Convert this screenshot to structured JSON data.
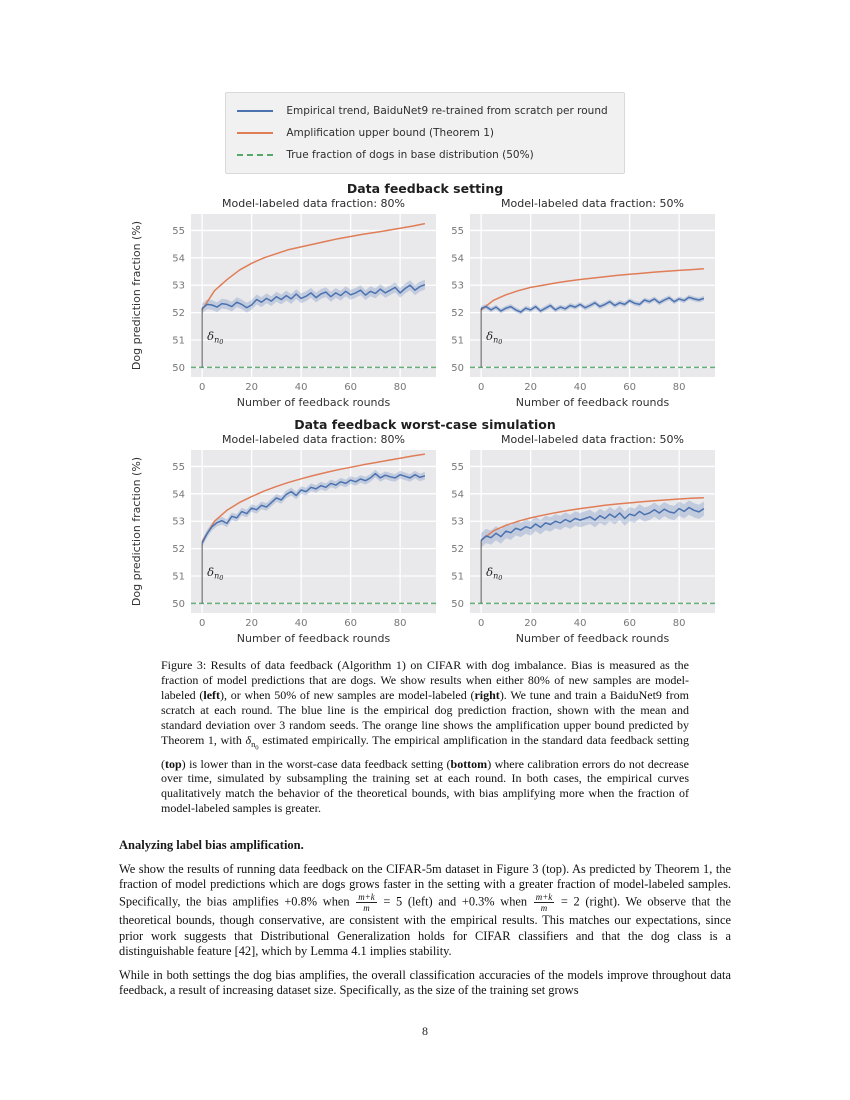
{
  "page_number": "8",
  "figure": {
    "legend": {
      "items": [
        {
          "label": "Empirical trend, BaiduNet9 re-trained from scratch per round",
          "color": "#4c72b0",
          "dash": false
        },
        {
          "label": "Amplification upper bound (Theorem 1)",
          "color": "#e07d57",
          "dash": false
        },
        {
          "label": "True fraction of dogs in base distribution (50%)",
          "color": "#55a868",
          "dash": true
        }
      ]
    },
    "groups": [
      {
        "title": "Data feedback setting"
      },
      {
        "title": "Data feedback worst-case simulation"
      }
    ]
  },
  "chart_data": [
    {
      "type": "line",
      "group": "Data feedback setting",
      "title": "Model-labeled data fraction: 80%",
      "xlabel": "Number of feedback rounds",
      "ylabel": "Dog prediction fraction (%)",
      "xlim": [
        -4.5,
        94.5
      ],
      "ylim": [
        49.65,
        55.6
      ],
      "xticks": [
        0,
        20,
        40,
        60,
        80
      ],
      "yticks": [
        50,
        51,
        52,
        53,
        54,
        55
      ],
      "baseline": {
        "y": 50,
        "color": "#55a868"
      },
      "annotation": {
        "t": "δ",
        "sub": "n",
        "subsub": "0",
        "x": 0,
        "from_y": 50
      },
      "series": [
        {
          "name": "Amplification upper bound (Theorem 1)",
          "color": "#e07d57",
          "x": [
            0,
            5,
            10,
            15,
            20,
            25,
            30,
            35,
            40,
            45,
            50,
            55,
            60,
            65,
            70,
            75,
            80,
            85,
            90
          ],
          "y": [
            52.1,
            52.8,
            53.2,
            53.55,
            53.8,
            54.0,
            54.15,
            54.3,
            54.4,
            54.5,
            54.6,
            54.7,
            54.78,
            54.86,
            54.93,
            55.0,
            55.08,
            55.16,
            55.25
          ]
        },
        {
          "name": "Empirical trend, BaiduNet9 re-trained from scratch per round",
          "color": "#4c72b0",
          "band": 0.18,
          "x": [
            0,
            2,
            4,
            6,
            8,
            10,
            12,
            14,
            16,
            18,
            20,
            22,
            24,
            26,
            28,
            30,
            32,
            34,
            36,
            38,
            40,
            42,
            44,
            46,
            48,
            50,
            52,
            54,
            56,
            58,
            60,
            62,
            64,
            66,
            68,
            70,
            72,
            74,
            76,
            78,
            80,
            82,
            84,
            86,
            88,
            90
          ],
          "y": [
            52.15,
            52.3,
            52.28,
            52.2,
            52.33,
            52.3,
            52.22,
            52.38,
            52.3,
            52.18,
            52.28,
            52.48,
            52.38,
            52.52,
            52.42,
            52.58,
            52.48,
            52.62,
            52.5,
            52.68,
            52.52,
            52.6,
            52.72,
            52.55,
            52.68,
            52.75,
            52.58,
            52.72,
            52.62,
            52.78,
            52.65,
            52.72,
            52.82,
            52.64,
            52.78,
            52.7,
            52.86,
            52.72,
            52.82,
            52.92,
            52.72,
            52.88,
            53.0,
            52.82,
            52.95,
            53.02
          ]
        }
      ]
    },
    {
      "type": "line",
      "group": "Data feedback setting",
      "title": "Model-labeled data fraction: 50%",
      "xlabel": "Number of feedback rounds",
      "ylabel": "",
      "xlim": [
        -4.5,
        94.5
      ],
      "ylim": [
        49.65,
        55.6
      ],
      "xticks": [
        0,
        20,
        40,
        60,
        80
      ],
      "yticks": [
        50,
        51,
        52,
        53,
        54,
        55
      ],
      "baseline": {
        "y": 50,
        "color": "#55a868"
      },
      "annotation": {
        "t": "δ",
        "sub": "n",
        "subsub": "0",
        "x": 0,
        "from_y": 50
      },
      "series": [
        {
          "name": "Amplification upper bound (Theorem 1)",
          "color": "#e07d57",
          "x": [
            0,
            5,
            10,
            15,
            20,
            25,
            30,
            35,
            40,
            45,
            50,
            55,
            60,
            65,
            70,
            75,
            80,
            85,
            90
          ],
          "y": [
            52.1,
            52.45,
            52.65,
            52.8,
            52.92,
            53.0,
            53.08,
            53.15,
            53.21,
            53.26,
            53.31,
            53.36,
            53.4,
            53.44,
            53.48,
            53.51,
            53.54,
            53.57,
            53.6
          ]
        },
        {
          "name": "Empirical trend, BaiduNet9 re-trained from scratch per round",
          "color": "#4c72b0",
          "band": 0.09,
          "x": [
            0,
            2,
            4,
            6,
            8,
            10,
            12,
            14,
            16,
            18,
            20,
            22,
            24,
            26,
            28,
            30,
            32,
            34,
            36,
            38,
            40,
            42,
            44,
            46,
            48,
            50,
            52,
            54,
            56,
            58,
            60,
            62,
            64,
            66,
            68,
            70,
            72,
            74,
            76,
            78,
            80,
            82,
            84,
            86,
            88,
            90
          ],
          "y": [
            52.15,
            52.22,
            52.1,
            52.2,
            52.06,
            52.16,
            52.22,
            52.1,
            52.02,
            52.16,
            52.1,
            52.22,
            52.06,
            52.16,
            52.26,
            52.1,
            52.2,
            52.14,
            52.26,
            52.2,
            52.3,
            52.18,
            52.26,
            52.36,
            52.22,
            52.3,
            52.4,
            52.26,
            52.36,
            52.3,
            52.44,
            52.34,
            52.3,
            52.46,
            52.4,
            52.5,
            52.36,
            52.46,
            52.54,
            52.4,
            52.5,
            52.44,
            52.56,
            52.5,
            52.46,
            52.52
          ]
        }
      ]
    },
    {
      "type": "line",
      "group": "Data feedback worst-case simulation",
      "title": "Model-labeled data fraction: 80%",
      "xlabel": "Number of feedback rounds",
      "ylabel": "Dog prediction fraction (%)",
      "xlim": [
        -4.5,
        94.5
      ],
      "ylim": [
        49.65,
        55.6
      ],
      "xticks": [
        0,
        20,
        40,
        60,
        80
      ],
      "yticks": [
        50,
        51,
        52,
        53,
        54,
        55
      ],
      "baseline": {
        "y": 50,
        "color": "#55a868"
      },
      "annotation": {
        "t": "δ",
        "sub": "n",
        "subsub": "0",
        "x": 0,
        "from_y": 50
      },
      "series": [
        {
          "name": "Amplification upper bound (Theorem 1)",
          "color": "#e07d57",
          "x": [
            0,
            5,
            10,
            15,
            20,
            25,
            30,
            35,
            40,
            45,
            50,
            55,
            60,
            65,
            70,
            75,
            80,
            85,
            90
          ],
          "y": [
            52.25,
            53.0,
            53.4,
            53.68,
            53.9,
            54.1,
            54.27,
            54.42,
            54.55,
            54.67,
            54.78,
            54.88,
            54.97,
            55.06,
            55.14,
            55.22,
            55.3,
            55.38,
            55.45
          ]
        },
        {
          "name": "Empirical trend, BaiduNet9 re-trained from scratch per round",
          "color": "#4c72b0",
          "band": 0.14,
          "x": [
            0,
            2,
            4,
            6,
            8,
            10,
            12,
            14,
            16,
            18,
            20,
            22,
            24,
            26,
            28,
            30,
            32,
            34,
            36,
            38,
            40,
            42,
            44,
            46,
            48,
            50,
            52,
            54,
            56,
            58,
            60,
            62,
            64,
            66,
            68,
            70,
            72,
            74,
            76,
            78,
            80,
            82,
            84,
            86,
            88,
            90
          ],
          "y": [
            52.2,
            52.55,
            52.8,
            52.95,
            53.02,
            52.92,
            53.18,
            53.12,
            53.35,
            53.28,
            53.48,
            53.42,
            53.58,
            53.52,
            53.68,
            53.85,
            53.78,
            53.98,
            54.08,
            53.94,
            54.14,
            54.08,
            54.24,
            54.18,
            54.3,
            54.24,
            54.38,
            54.32,
            54.44,
            54.38,
            54.5,
            54.44,
            54.54,
            54.48,
            54.58,
            54.74,
            54.58,
            54.68,
            54.62,
            54.58,
            54.7,
            54.64,
            54.58,
            54.7,
            54.6,
            54.66
          ]
        }
      ]
    },
    {
      "type": "line",
      "group": "Data feedback worst-case simulation",
      "title": "Model-labeled data fraction: 50%",
      "xlabel": "Number of feedback rounds",
      "ylabel": "",
      "xlim": [
        -4.5,
        94.5
      ],
      "ylim": [
        49.65,
        55.6
      ],
      "xticks": [
        0,
        20,
        40,
        60,
        80
      ],
      "yticks": [
        50,
        51,
        52,
        53,
        54,
        55
      ],
      "baseline": {
        "y": 50,
        "color": "#55a868"
      },
      "annotation": {
        "t": "δ",
        "sub": "n",
        "subsub": "0",
        "x": 0,
        "from_y": 50
      },
      "series": [
        {
          "name": "Amplification upper bound (Theorem 1)",
          "color": "#e07d57",
          "x": [
            0,
            5,
            10,
            15,
            20,
            25,
            30,
            35,
            40,
            45,
            50,
            55,
            60,
            65,
            70,
            75,
            80,
            85,
            90
          ],
          "y": [
            52.3,
            52.65,
            52.85,
            53.0,
            53.12,
            53.22,
            53.31,
            53.39,
            53.46,
            53.52,
            53.58,
            53.63,
            53.67,
            53.71,
            53.75,
            53.78,
            53.81,
            53.84,
            53.86
          ]
        },
        {
          "name": "Empirical trend, BaiduNet9 re-trained from scratch per round",
          "color": "#4c72b0",
          "band": 0.26,
          "x": [
            0,
            2,
            4,
            6,
            8,
            10,
            12,
            14,
            16,
            18,
            20,
            22,
            24,
            26,
            28,
            30,
            32,
            34,
            36,
            38,
            40,
            42,
            44,
            46,
            48,
            50,
            52,
            54,
            56,
            58,
            60,
            62,
            64,
            66,
            68,
            70,
            72,
            74,
            76,
            78,
            80,
            82,
            84,
            86,
            88,
            90
          ],
          "y": [
            52.3,
            52.46,
            52.4,
            52.56,
            52.44,
            52.64,
            52.58,
            52.74,
            52.68,
            52.8,
            52.74,
            52.9,
            52.78,
            52.94,
            52.88,
            53.0,
            52.94,
            53.06,
            52.98,
            53.1,
            53.04,
            53.1,
            53.16,
            53.04,
            53.2,
            53.1,
            53.26,
            53.14,
            53.3,
            53.1,
            53.26,
            53.2,
            53.36,
            53.24,
            53.3,
            53.42,
            53.3,
            53.44,
            53.34,
            53.3,
            53.46,
            53.36,
            53.5,
            53.4,
            53.34,
            53.46
          ]
        }
      ]
    }
  ],
  "caption": {
    "segments": [
      {
        "style": "t",
        "t": "Figure 3: Results of data feedback (Algorithm 1) on CIFAR with dog imbalance. Bias is measured as the fraction of model predictions that are dogs. We show results when either 80% of new samples are model-labeled ("
      },
      {
        "style": "b",
        "t": "left"
      },
      {
        "style": "t",
        "t": "), or when 50% of new samples are model-labeled ("
      },
      {
        "style": "b",
        "t": "right"
      },
      {
        "style": "t",
        "t": "). We tune and train a BaiduNet9 from scratch at each round. The blue line is the empirical dog prediction fraction, shown with the mean and standard deviation over 3 random seeds. The orange line shows the amplification upper bound predicted by Theorem 1, with "
      },
      {
        "style": "dsub",
        "t": "δ",
        "sub": "n",
        "subsub": "0"
      },
      {
        "style": "t",
        "t": " estimated empirically. The empirical amplification in the standard data feedback setting ("
      },
      {
        "style": "b",
        "t": "top"
      },
      {
        "style": "t",
        "t": ") is lower than in the worst-case data feedback setting ("
      },
      {
        "style": "b",
        "t": "bottom"
      },
      {
        "style": "t",
        "t": ") where calibration errors do not decrease over time, simulated by subsampling the training set at each round. In both cases, the empirical curves qualitatively match the behavior of the theoretical bounds, with bias amplifying more when the fraction of model-labeled samples is greater."
      }
    ]
  },
  "body": {
    "heading": "Analyzing label bias amplification.",
    "para1": {
      "segments": [
        {
          "style": "t",
          "t": "We show the results of running data feedback on the CIFAR-5m dataset in Figure 3 (top). As predicted by Theorem 1, the fraction of model predictions which are dogs grows faster in the setting with a greater fraction of model-labeled samples. Specifically, the bias amplifies +0.8% when "
        },
        {
          "style": "frac",
          "num": "m+k",
          "den": "m"
        },
        {
          "style": "t",
          "t": " = 5 (left) and +0.3% when "
        },
        {
          "style": "frac",
          "num": "m+k",
          "den": "m"
        },
        {
          "style": "t",
          "t": " = 2 (right). We observe that the theoretical bounds, though conservative, are consistent with the empirical results. This matches our expectations, since prior work suggests that Distributional Generalization holds for CIFAR classifiers and that the dog class is a distinguishable feature [42], which by Lemma 4.1 implies stability."
        }
      ]
    },
    "para2": {
      "segments": [
        {
          "style": "t",
          "t": "While in both settings the dog bias amplifies, the overall classification accuracies of the models improve throughout data feedback, a result of increasing dataset size. Specifically, as the size of the training set grows"
        }
      ]
    }
  }
}
